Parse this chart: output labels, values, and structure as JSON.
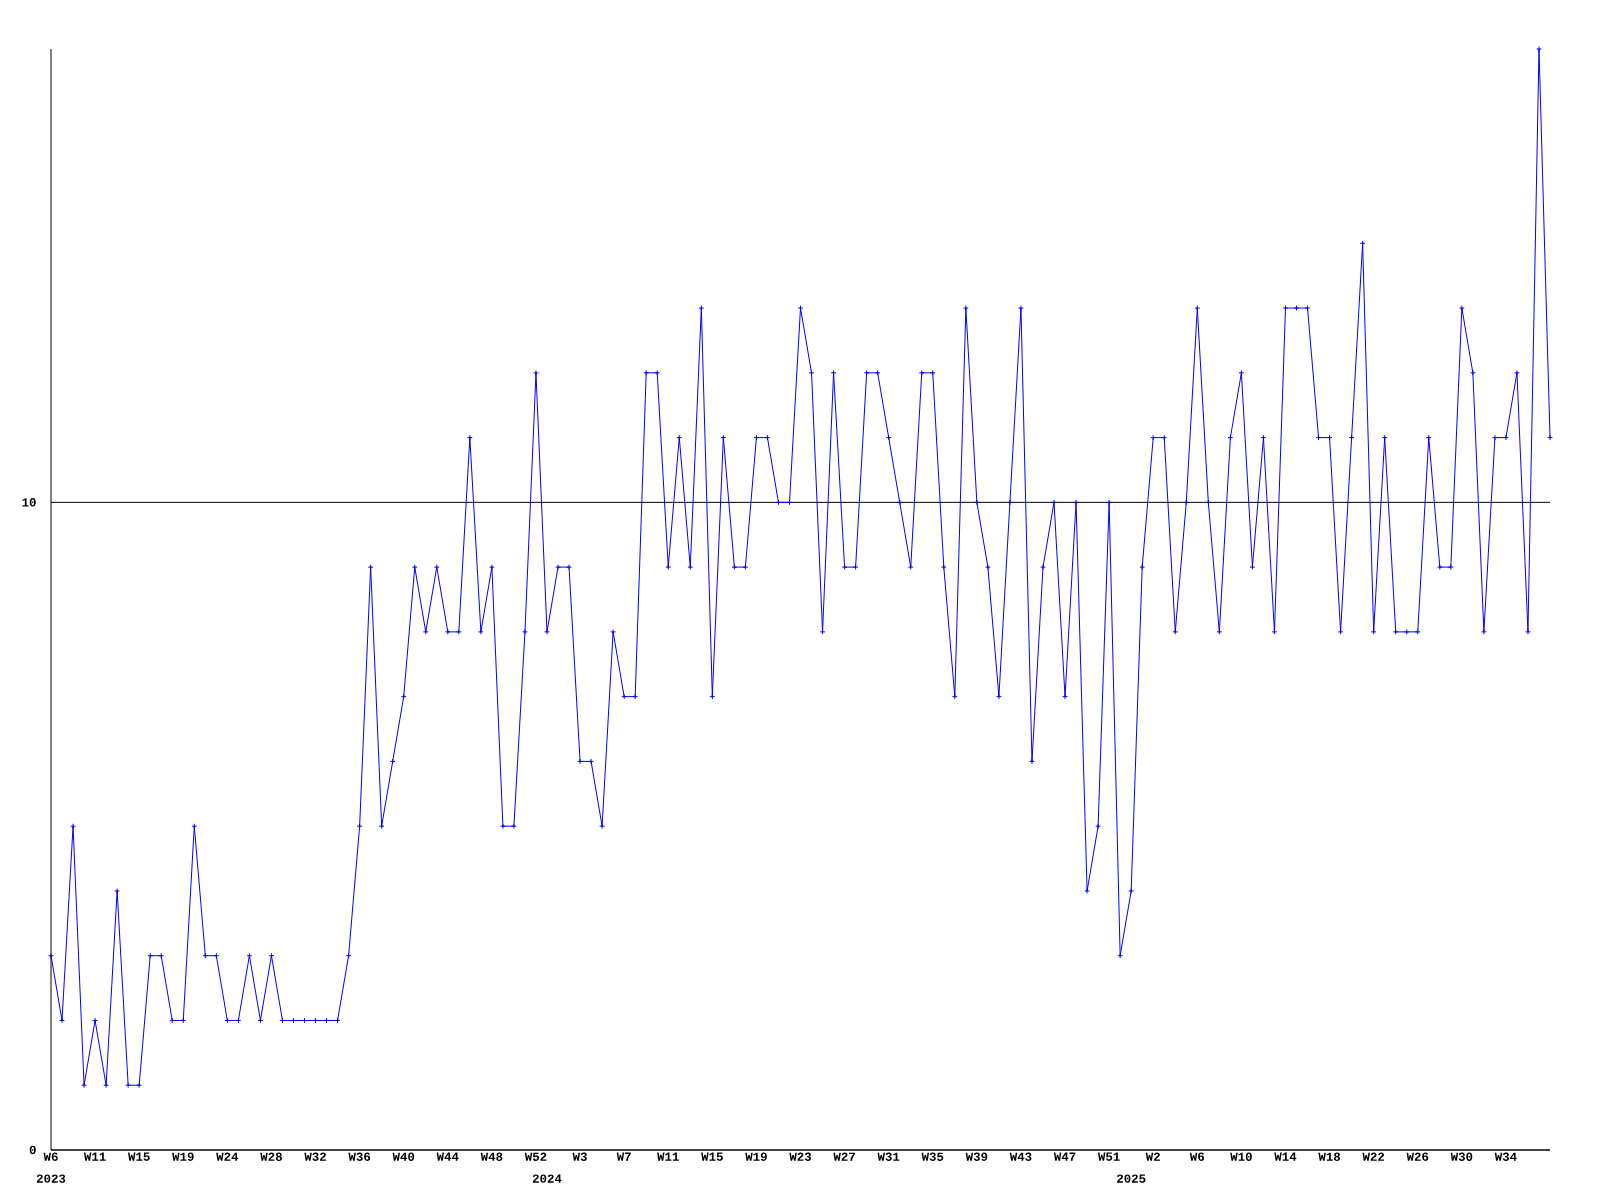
{
  "chart_data": {
    "type": "line",
    "categories": [
      "W6",
      null,
      null,
      null,
      "W11",
      null,
      null,
      null,
      "W15",
      null,
      null,
      null,
      "W19",
      null,
      null,
      null,
      "W24",
      null,
      null,
      null,
      "W28",
      null,
      null,
      null,
      "W32",
      null,
      null,
      null,
      "W36",
      null,
      null,
      null,
      "W40",
      null,
      null,
      null,
      "W44",
      null,
      null,
      null,
      "W48",
      null,
      null,
      null,
      "W52",
      "2024",
      null,
      null,
      "W3",
      null,
      null,
      null,
      "W7",
      null,
      null,
      null,
      "W11",
      null,
      null,
      null,
      "W15",
      null,
      null,
      null,
      "W19",
      null,
      null,
      null,
      "W23",
      null,
      null,
      null,
      "W27",
      null,
      null,
      null,
      "W31",
      null,
      null,
      null,
      "W35",
      null,
      null,
      null,
      "W39",
      null,
      null,
      null,
      "W43",
      null,
      null,
      null,
      "W47",
      null,
      null,
      null,
      "W51",
      null,
      "2025",
      null,
      "W2",
      null,
      null,
      null,
      "W6",
      null,
      null,
      null,
      "W10",
      null,
      null,
      null,
      "W14",
      null,
      null,
      null,
      "W18",
      null,
      null,
      null,
      "W22",
      null,
      null,
      null,
      "W26",
      null,
      null,
      null,
      "W30",
      null,
      null,
      null,
      "W34",
      null,
      null,
      null,
      null
    ],
    "values": [
      3,
      2,
      5,
      1,
      2,
      1,
      4,
      1,
      1,
      3,
      3,
      2,
      2,
      5,
      3,
      3,
      2,
      2,
      3,
      2,
      3,
      2,
      2,
      2,
      2,
      2,
      2,
      3,
      5,
      9,
      5,
      6,
      7,
      9,
      8,
      9,
      8,
      8,
      11,
      8,
      9,
      5,
      5,
      8,
      12,
      8,
      9,
      9,
      6,
      6,
      5,
      8,
      7,
      7,
      12,
      12,
      9,
      11,
      9,
      13,
      7,
      11,
      9,
      9,
      11,
      11,
      10,
      10,
      13,
      12,
      8,
      12,
      9,
      9,
      12,
      12,
      11,
      10,
      9,
      12,
      12,
      9,
      7,
      13,
      10,
      9,
      7,
      10,
      13,
      6,
      9,
      10,
      7,
      10,
      4,
      5,
      10,
      3,
      4,
      9,
      11,
      11,
      8,
      10,
      13,
      10,
      8,
      11,
      12,
      9,
      11,
      8,
      13,
      13,
      13,
      11,
      11,
      8,
      11,
      14,
      8,
      11,
      8,
      8,
      8,
      11,
      9,
      9,
      13,
      12,
      8,
      11,
      11,
      12,
      8,
      17,
      11
    ],
    "color": "#0000ff",
    "marker": "cross",
    "line_style": "solid",
    "ylim": [
      0,
      17
    ],
    "yticks": [
      0,
      10
    ],
    "grid": "y",
    "annotations": [
      "2023"
    ]
  }
}
